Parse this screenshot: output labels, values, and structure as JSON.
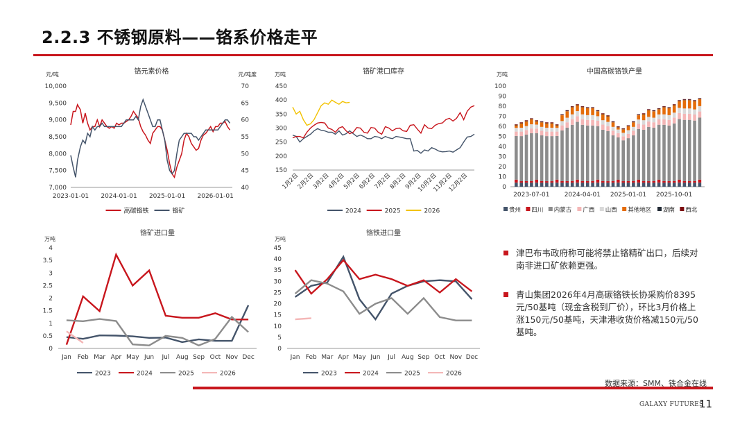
{
  "page": {
    "title": "2.2.3 不锈钢原料——铬系价格走平",
    "bullets": [
      "津巴布韦政府称可能将禁止铬精矿出口，后续对南非进口矿依赖更强。",
      "青山集团2026年4月高碳铬铁长协采购价8395元/50基吨（现金含税到厂价），环比3月价格上涨150元/50基吨，天津港收货价格减150元/50基吨。"
    ],
    "source": "数据来源：SMM、铁合金在线",
    "footer_brand": "GALAXY FUTURES",
    "page_number": "11"
  },
  "colors": {
    "accent": "#c8161d",
    "dark": "#44546a",
    "gray": "#8c8c8c",
    "pink": "#f4b6b6",
    "gold": "#f2c200"
  },
  "chart_data": [
    {
      "id": "chrome-price",
      "type": "line",
      "title": "铬元素价格",
      "ylabel_left": "元/吨",
      "ylabel_right": "元/吨度",
      "ylim_left": [
        7000,
        10000
      ],
      "ylim_right": [
        40,
        70
      ],
      "yticks_left": [
        "7,000",
        "7,500",
        "8,000",
        "8,500",
        "9,000",
        "9,500",
        "10,000"
      ],
      "yticks_right": [
        "40",
        "45",
        "50",
        "55",
        "60",
        "65",
        "70"
      ],
      "xticks": [
        "2023-01-01",
        "2024-01-01",
        "2025-01-01",
        "2026-01-01"
      ],
      "xrange_years": [
        2023.0,
        2026.35
      ],
      "series": [
        {
          "name": "高碳铬铁",
          "axis": "left",
          "color": "#c8161d",
          "t": [
            2023.0,
            2023.05,
            2023.1,
            2023.14,
            2023.2,
            2023.25,
            2023.3,
            2023.35,
            2023.4,
            2023.45,
            2023.5,
            2023.55,
            2023.6,
            2023.65,
            2023.7,
            2023.75,
            2023.8,
            2023.85,
            2023.9,
            2023.95,
            2024.0,
            2024.05,
            2024.1,
            2024.15,
            2024.2,
            2024.25,
            2024.3,
            2024.35,
            2024.4,
            2024.45,
            2024.5,
            2024.55,
            2024.6,
            2024.65,
            2024.7,
            2024.75,
            2024.8,
            2024.85,
            2024.9,
            2024.95,
            2025.0,
            2025.05,
            2025.1,
            2025.15,
            2025.2,
            2025.25,
            2025.3,
            2025.35,
            2025.4,
            2025.45,
            2025.5,
            2025.55,
            2025.6,
            2025.65,
            2025.7,
            2025.75,
            2025.8,
            2025.85,
            2025.9,
            2025.95,
            2026.0,
            2026.05,
            2026.1,
            2026.15,
            2026.2,
            2026.25,
            2026.3
          ],
          "v": [
            8850,
            9250,
            9250,
            9450,
            9300,
            8900,
            9200,
            8900,
            8700,
            8800,
            8800,
            9000,
            8800,
            9000,
            8900,
            8800,
            8750,
            8800,
            8750,
            8900,
            8850,
            8900,
            8900,
            8950,
            9000,
            9100,
            9250,
            9150,
            9050,
            8800,
            8650,
            8550,
            8400,
            8300,
            8600,
            8700,
            8800,
            8800,
            8700,
            8400,
            8100,
            7700,
            7400,
            7300,
            7600,
            7800,
            8000,
            8400,
            8600,
            8500,
            8300,
            8200,
            8100,
            8150,
            8400,
            8550,
            8600,
            8700,
            8800,
            8650,
            8800,
            8800,
            8900,
            8900,
            8950,
            8800,
            8700
          ]
        },
        {
          "name": "铬矿",
          "axis": "right",
          "color": "#44546a",
          "t": [
            2023.0,
            2023.05,
            2023.1,
            2023.14,
            2023.2,
            2023.25,
            2023.3,
            2023.35,
            2023.4,
            2023.45,
            2023.5,
            2023.55,
            2023.6,
            2023.65,
            2023.7,
            2023.75,
            2023.8,
            2023.85,
            2023.9,
            2023.95,
            2024.0,
            2024.05,
            2024.1,
            2024.15,
            2024.2,
            2024.25,
            2024.3,
            2024.35,
            2024.4,
            2024.45,
            2024.5,
            2024.55,
            2024.6,
            2024.65,
            2024.7,
            2024.75,
            2024.8,
            2024.85,
            2024.9,
            2024.95,
            2025.0,
            2025.05,
            2025.1,
            2025.15,
            2025.2,
            2025.25,
            2025.3,
            2025.35,
            2025.4,
            2025.45,
            2025.5,
            2025.55,
            2025.6,
            2025.65,
            2025.7,
            2025.75,
            2025.8,
            2025.85,
            2025.9,
            2025.95,
            2026.0,
            2026.05,
            2026.1,
            2026.15,
            2026.2,
            2026.25,
            2026.3
          ],
          "v": [
            49.5,
            46,
            43,
            48,
            52,
            54,
            53,
            56,
            55,
            58,
            57,
            58,
            58,
            59,
            58,
            58,
            58,
            58,
            58,
            58,
            58,
            58,
            59,
            60,
            60,
            60,
            60,
            61,
            60,
            64,
            66,
            64,
            62,
            60,
            58,
            58,
            60,
            60,
            57,
            54,
            48,
            45,
            44,
            45,
            50,
            54,
            55,
            56,
            56,
            56,
            56,
            55,
            55,
            54,
            55,
            56,
            57,
            57,
            57,
            57,
            57,
            57,
            58,
            59,
            60,
            60,
            59
          ]
        }
      ],
      "legend": [
        "高碳铬铁",
        "铬矿"
      ]
    },
    {
      "id": "port-stock",
      "type": "line",
      "title": "铬矿港口库存",
      "ylabel": "万吨",
      "ylim": [
        150,
        450
      ],
      "yticks": [
        "150",
        "200",
        "250",
        "300",
        "350",
        "400",
        "450"
      ],
      "xticks": [
        "1月2日",
        "2月2日",
        "3月2日",
        "4月2日",
        "5月2日",
        "6月2日",
        "7月2日",
        "8月2日",
        "9月2日",
        "10月2日",
        "11月2日",
        "12月2日"
      ],
      "series": [
        {
          "name": "2024",
          "color": "#44546a",
          "w": [
            0,
            1,
            2,
            3,
            4,
            5,
            6,
            7,
            8,
            9,
            10,
            11,
            12,
            13,
            14,
            15,
            16,
            17,
            18,
            19,
            20,
            21,
            22,
            23,
            24,
            25,
            26,
            27,
            28,
            29,
            30,
            31,
            32,
            33,
            34,
            35,
            36,
            37,
            38,
            39,
            40,
            41,
            42,
            43,
            44,
            45,
            46,
            47,
            48,
            49,
            50,
            51
          ],
          "v": [
            275,
            270,
            250,
            262,
            270,
            278,
            290,
            298,
            292,
            290,
            285,
            285,
            278,
            290,
            275,
            280,
            290,
            280,
            270,
            275,
            270,
            262,
            262,
            270,
            268,
            262,
            270,
            265,
            262,
            270,
            268,
            265,
            262,
            262,
            218,
            220,
            210,
            222,
            218,
            230,
            225,
            218,
            215,
            216,
            218,
            214,
            222,
            230,
            250,
            268,
            270,
            278
          ]
        },
        {
          "name": "2025",
          "color": "#c8161d",
          "w": [
            0,
            1,
            2,
            3,
            4,
            5,
            6,
            7,
            8,
            9,
            10,
            11,
            12,
            13,
            14,
            15,
            16,
            17,
            18,
            19,
            20,
            21,
            22,
            23,
            24,
            25,
            26,
            27,
            28,
            29,
            30,
            31,
            32,
            33,
            34,
            35,
            36,
            37,
            38,
            39,
            40,
            41,
            42,
            43,
            44,
            45,
            46,
            47,
            48,
            49,
            50,
            51
          ],
          "v": [
            265,
            270,
            270,
            265,
            285,
            300,
            310,
            318,
            320,
            318,
            300,
            295,
            285,
            300,
            305,
            290,
            280,
            285,
            302,
            300,
            285,
            282,
            302,
            300,
            285,
            278,
            305,
            300,
            290,
            298,
            300,
            290,
            288,
            310,
            312,
            296,
            282,
            312,
            300,
            298,
            310,
            316,
            318,
            330,
            335,
            325,
            335,
            355,
            330,
            360,
            375,
            380
          ]
        },
        {
          "name": "2026",
          "color": "#f2c200",
          "w": [
            0,
            1,
            2,
            3,
            4,
            5,
            6,
            7,
            8,
            9,
            10,
            11,
            12,
            13,
            14,
            15,
            16
          ],
          "v": [
            375,
            350,
            360,
            330,
            310,
            315,
            330,
            355,
            380,
            390,
            385,
            400,
            392,
            385,
            395,
            390,
            392
          ]
        }
      ],
      "legend": [
        "2024",
        "2025",
        "2026"
      ]
    },
    {
      "id": "hc-ferrochrome-output",
      "type": "bar",
      "stacked": true,
      "title": "中国高碳铬铁产量",
      "ylabel": "万吨",
      "ylim": [
        0,
        100
      ],
      "yticks": [
        "0",
        "10",
        "20",
        "30",
        "40",
        "50",
        "60",
        "70",
        "80",
        "90",
        "100"
      ],
      "xticks": [
        "2023-07-01",
        "2024-04-01",
        "2025-01-01",
        "2025-10-01"
      ],
      "legend": [
        "贵州",
        "四川",
        "内蒙古",
        "广西",
        "山西",
        "其他地区",
        "湖南",
        "西北"
      ],
      "series_colors": [
        "#44546a",
        "#c8161d",
        "#8c8c8c",
        "#f4b6b6",
        "#d9d9d9",
        "#e46c0a",
        "#222a35",
        "#7b0a0e"
      ],
      "totals": [
        62,
        64,
        66,
        68,
        66,
        65,
        64,
        64,
        62,
        72,
        76,
        80,
        82,
        80,
        79,
        79,
        76,
        73,
        71,
        65,
        60,
        58,
        61,
        65,
        72,
        73,
        77,
        76,
        78,
        80,
        79,
        82,
        86,
        87,
        87,
        86,
        88
      ]
    },
    {
      "id": "ore-imports",
      "type": "line",
      "title": "铬矿进口量",
      "ylabel": "万吨",
      "ylim": [
        0,
        4
      ],
      "yticks": [
        "0",
        "0.5",
        "1",
        "1.5",
        "2",
        "2.5",
        "3",
        "3.5",
        "4"
      ],
      "xticks": [
        "Jan",
        "Feb",
        "Mar",
        "Apr",
        "May",
        "Jun",
        "Jul",
        "Aug",
        "Sep",
        "Oct",
        "Nov",
        "Dec"
      ],
      "series": [
        {
          "name": "2023",
          "color": "#44546a",
          "values": [
            0.45,
            0.38,
            0.52,
            0.51,
            0.48,
            0.42,
            0.43,
            0.25,
            0.36,
            0.3,
            0.3,
            1.72
          ]
        },
        {
          "name": "2024",
          "color": "#c8161d",
          "values": [
            0.15,
            2.07,
            1.48,
            3.73,
            2.5,
            3.1,
            1.3,
            1.22,
            1.22,
            1.4,
            1.15,
            1.15
          ]
        },
        {
          "name": "2025",
          "color": "#8c8c8c",
          "values": [
            1.12,
            1.08,
            1.17,
            1.09,
            0.16,
            0.12,
            0.5,
            0.42,
            0.12,
            0.38,
            1.25,
            0.65
          ]
        },
        {
          "name": "2026",
          "color": "#f4b6b6",
          "values": [
            0.68,
            0.22
          ]
        }
      ],
      "legend": [
        "2023",
        "2024",
        "2025",
        "2026"
      ]
    },
    {
      "id": "fe-imports",
      "type": "line",
      "title": "铬铁进口量",
      "ylabel": "万吨",
      "ylim": [
        0,
        45
      ],
      "yticks": [
        "0",
        "5",
        "10",
        "15",
        "20",
        "25",
        "30",
        "35",
        "40",
        "45"
      ],
      "xticks": [
        "Jan",
        "Feb",
        "Mar",
        "Apr",
        "May",
        "Jun",
        "Jul",
        "Aug",
        "Sep",
        "Oct",
        "Nov",
        "Dec"
      ],
      "series": [
        {
          "name": "2023",
          "color": "#44546a",
          "values": [
            23,
            28,
            29.5,
            41,
            22,
            13,
            24.5,
            28,
            30,
            30.5,
            30,
            22
          ]
        },
        {
          "name": "2024",
          "color": "#c8161d",
          "values": [
            35,
            24.5,
            31,
            39.5,
            31,
            33,
            31,
            28,
            30.5,
            25,
            31,
            25.5
          ]
        },
        {
          "name": "2025",
          "color": "#8c8c8c",
          "values": [
            24.5,
            30.5,
            29,
            25.5,
            15.5,
            20,
            22.5,
            15.5,
            22.5,
            14,
            12.5,
            12.5
          ]
        },
        {
          "name": "2026",
          "color": "#f4b6b6",
          "values": [
            13,
            13.5
          ]
        }
      ],
      "legend": [
        "2023",
        "2024",
        "2025",
        "2026"
      ]
    }
  ]
}
